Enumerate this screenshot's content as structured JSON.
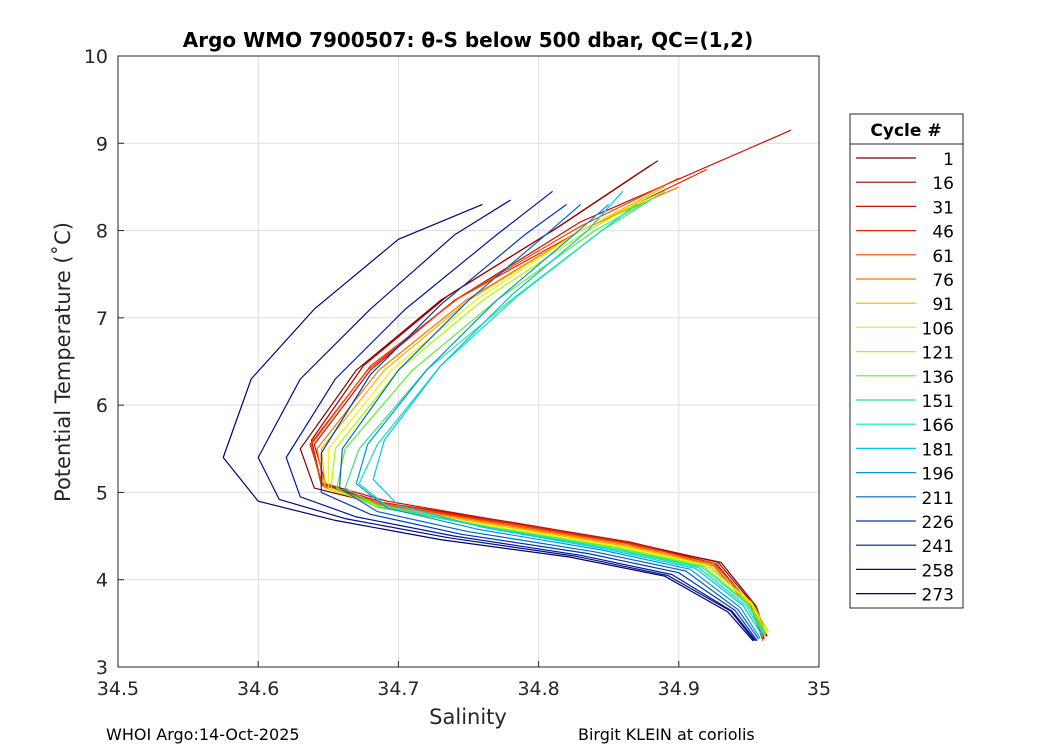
{
  "chart_data": {
    "type": "line",
    "title": "Argo WMO 7900507: θ-S below 500 dbar,  QC=(1,2)",
    "xlabel": "Salinity",
    "ylabel": "Potential Temperature (˚C)",
    "xlim": [
      34.5,
      35
    ],
    "ylim": [
      3,
      10
    ],
    "xticks": [
      34.5,
      34.6,
      34.7,
      34.8,
      34.9,
      35
    ],
    "xtick_labels": [
      "34.5",
      "34.6",
      "34.7",
      "34.8",
      "34.9",
      "35"
    ],
    "yticks": [
      3,
      4,
      5,
      6,
      7,
      8,
      9,
      10
    ],
    "ytick_labels": [
      "3",
      "4",
      "5",
      "6",
      "7",
      "8",
      "9",
      "10"
    ],
    "grid": true,
    "legend": {
      "title": "Cycle #",
      "position": "right-outside",
      "entries": [
        {
          "label": "1",
          "color": "#800000"
        },
        {
          "label": "16",
          "color": "#a00000"
        },
        {
          "label": "31",
          "color": "#c81000"
        },
        {
          "label": "46",
          "color": "#e02800"
        },
        {
          "label": "61",
          "color": "#f04800"
        },
        {
          "label": "76",
          "color": "#f87800"
        },
        {
          "label": "91",
          "color": "#f8b000"
        },
        {
          "label": "106",
          "color": "#f8f000"
        },
        {
          "label": "121",
          "color": "#b0f800"
        },
        {
          "label": "136",
          "color": "#60f030"
        },
        {
          "label": "151",
          "color": "#30e880"
        },
        {
          "label": "166",
          "color": "#10e0c0"
        },
        {
          "label": "181",
          "color": "#00c8f0"
        },
        {
          "label": "196",
          "color": "#0098d8"
        },
        {
          "label": "211",
          "color": "#0068c8"
        },
        {
          "label": "226",
          "color": "#0038b0"
        },
        {
          "label": "241",
          "color": "#001898"
        },
        {
          "label": "258",
          "color": "#000c80"
        },
        {
          "label": "273",
          "color": "#000070"
        }
      ]
    },
    "series": [
      {
        "name": "1",
        "color": "#800000",
        "salinity": [
          34.963,
          34.955,
          34.93,
          34.87,
          34.78,
          34.69,
          34.64,
          34.63,
          34.67,
          34.73,
          34.81,
          34.88
        ],
        "theta": [
          3.35,
          3.7,
          4.2,
          4.4,
          4.65,
          4.85,
          5.05,
          5.5,
          6.4,
          7.2,
          8.0,
          8.75
        ]
      },
      {
        "name": "16",
        "color": "#a00000",
        "salinity": [
          34.962,
          34.954,
          34.928,
          34.868,
          34.78,
          34.69,
          34.645,
          34.638,
          34.675,
          34.735,
          34.815,
          34.885
        ],
        "theta": [
          3.35,
          3.7,
          4.2,
          4.42,
          4.66,
          4.88,
          5.1,
          5.6,
          6.45,
          7.25,
          8.05,
          8.8
        ]
      },
      {
        "name": "31",
        "color": "#c81000",
        "salinity": [
          34.961,
          34.953,
          34.927,
          34.866,
          34.779,
          34.692,
          34.648,
          34.64,
          34.68,
          34.74,
          34.83,
          34.98
        ],
        "theta": [
          3.32,
          3.68,
          4.18,
          4.43,
          4.66,
          4.9,
          5.1,
          5.55,
          6.4,
          7.2,
          8.1,
          9.15
        ]
      },
      {
        "name": "46",
        "color": "#e02800",
        "salinity": [
          34.96,
          34.952,
          34.926,
          34.865,
          34.778,
          34.69,
          34.646,
          34.637,
          34.678,
          34.74,
          34.83,
          34.92
        ],
        "theta": [
          3.32,
          3.68,
          4.18,
          4.42,
          4.65,
          4.88,
          5.08,
          5.55,
          6.4,
          7.2,
          8.0,
          8.7
        ]
      },
      {
        "name": "61",
        "color": "#f04800",
        "salinity": [
          34.96,
          34.952,
          34.925,
          34.864,
          34.776,
          34.688,
          34.645,
          34.638,
          34.68,
          34.745,
          34.83,
          34.9
        ],
        "theta": [
          3.3,
          3.66,
          4.16,
          4.41,
          4.64,
          4.87,
          5.08,
          5.55,
          6.45,
          7.25,
          8.05,
          8.6
        ]
      },
      {
        "name": "76",
        "color": "#f87800",
        "salinity": [
          34.962,
          34.953,
          34.925,
          34.862,
          34.774,
          34.688,
          34.647,
          34.642,
          34.686,
          34.748,
          34.83,
          34.9
        ],
        "theta": [
          3.35,
          3.7,
          4.18,
          4.4,
          4.63,
          4.86,
          5.06,
          5.5,
          6.4,
          7.2,
          8.0,
          8.5
        ]
      },
      {
        "name": "91",
        "color": "#f8b000",
        "salinity": [
          34.962,
          34.952,
          34.922,
          34.86,
          34.772,
          34.687,
          34.648,
          34.645,
          34.69,
          34.75,
          34.83,
          34.89
        ],
        "theta": [
          3.35,
          3.7,
          4.17,
          4.39,
          4.62,
          4.85,
          5.05,
          5.5,
          6.4,
          7.2,
          8.0,
          8.5
        ]
      },
      {
        "name": "106",
        "color": "#f8f000",
        "salinity": [
          34.963,
          34.952,
          34.92,
          34.858,
          34.77,
          34.686,
          34.65,
          34.65,
          34.695,
          34.755,
          34.83,
          34.88
        ],
        "theta": [
          3.38,
          3.72,
          4.17,
          4.38,
          4.61,
          4.84,
          5.05,
          5.5,
          6.4,
          7.2,
          8.0,
          8.4
        ]
      },
      {
        "name": "121",
        "color": "#b0f800",
        "salinity": [
          34.964,
          34.952,
          34.92,
          34.856,
          34.768,
          34.684,
          34.652,
          34.655,
          34.7,
          34.76,
          34.835,
          34.88
        ],
        "theta": [
          3.4,
          3.74,
          4.16,
          4.37,
          4.6,
          4.84,
          5.05,
          5.5,
          6.4,
          7.2,
          8.0,
          8.4
        ]
      },
      {
        "name": "136",
        "color": "#60f030",
        "salinity": [
          34.962,
          34.95,
          34.918,
          34.854,
          34.766,
          34.685,
          34.656,
          34.662,
          34.71,
          34.77,
          34.84,
          34.89
        ],
        "theta": [
          3.38,
          3.72,
          4.15,
          4.37,
          4.6,
          4.83,
          5.05,
          5.5,
          6.4,
          7.2,
          8.0,
          8.45
        ]
      },
      {
        "name": "151",
        "color": "#30e880",
        "salinity": [
          34.961,
          34.949,
          34.916,
          34.852,
          34.764,
          34.688,
          34.662,
          34.672,
          34.72,
          34.78,
          34.845,
          34.88
        ],
        "theta": [
          3.38,
          3.72,
          4.15,
          4.36,
          4.6,
          4.83,
          5.05,
          5.5,
          6.4,
          7.2,
          8.0,
          8.35
        ]
      },
      {
        "name": "166",
        "color": "#10e0c0",
        "salinity": [
          34.961,
          34.948,
          34.914,
          34.85,
          34.762,
          34.692,
          34.672,
          34.685,
          34.73,
          34.785,
          34.845,
          34.87
        ],
        "theta": [
          3.36,
          3.7,
          4.14,
          4.36,
          4.6,
          4.84,
          5.1,
          5.55,
          6.45,
          7.25,
          8.0,
          8.3
        ]
      },
      {
        "name": "181",
        "color": "#00c8f0",
        "salinity": [
          34.96,
          34.946,
          34.912,
          34.848,
          34.76,
          34.7,
          34.682,
          34.69,
          34.73,
          34.78,
          34.835,
          34.86
        ],
        "theta": [
          3.35,
          3.7,
          4.13,
          4.35,
          4.6,
          4.85,
          5.15,
          5.6,
          6.45,
          7.25,
          8.0,
          8.45
        ]
      },
      {
        "name": "196",
        "color": "#0098d8",
        "salinity": [
          34.958,
          34.944,
          34.908,
          34.845,
          34.756,
          34.692,
          34.67,
          34.678,
          34.72,
          34.77,
          34.825,
          34.85
        ],
        "theta": [
          3.33,
          3.68,
          4.12,
          4.34,
          4.58,
          4.82,
          5.1,
          5.55,
          6.4,
          7.2,
          7.95,
          8.3
        ]
      },
      {
        "name": "211",
        "color": "#0068c8",
        "salinity": [
          34.957,
          34.942,
          34.905,
          34.84,
          34.75,
          34.685,
          34.658,
          34.66,
          34.7,
          34.75,
          34.805,
          34.83
        ],
        "theta": [
          3.32,
          3.66,
          4.1,
          4.32,
          4.55,
          4.78,
          5.05,
          5.5,
          6.4,
          7.2,
          7.95,
          8.3
        ]
      },
      {
        "name": "226",
        "color": "#0038b0",
        "salinity": [
          34.956,
          34.94,
          34.9,
          34.835,
          34.745,
          34.68,
          34.645,
          34.645,
          34.68,
          34.73,
          34.79,
          34.82
        ],
        "theta": [
          3.3,
          3.65,
          4.08,
          4.3,
          4.52,
          4.75,
          5.0,
          5.45,
          6.35,
          7.15,
          7.95,
          8.3
        ]
      },
      {
        "name": "241",
        "color": "#001898",
        "salinity": [
          34.955,
          34.938,
          34.895,
          34.83,
          34.74,
          34.67,
          34.63,
          34.62,
          34.655,
          34.705,
          34.77,
          34.81
        ],
        "theta": [
          3.3,
          3.64,
          4.06,
          4.28,
          4.5,
          4.72,
          4.95,
          5.4,
          6.3,
          7.1,
          7.95,
          8.45
        ]
      },
      {
        "name": "258",
        "color": "#000c80",
        "salinity": [
          34.954,
          34.937,
          34.892,
          34.826,
          34.736,
          34.662,
          34.615,
          34.6,
          34.63,
          34.68,
          34.74,
          34.78
        ],
        "theta": [
          3.3,
          3.64,
          4.05,
          4.27,
          4.48,
          4.7,
          4.92,
          5.4,
          6.3,
          7.1,
          7.95,
          8.35
        ]
      },
      {
        "name": "273",
        "color": "#000070",
        "salinity": [
          34.953,
          34.935,
          34.89,
          34.822,
          34.73,
          34.655,
          34.6,
          34.575,
          34.595,
          34.64,
          34.7,
          34.76
        ],
        "theta": [
          3.3,
          3.63,
          4.04,
          4.26,
          4.46,
          4.68,
          4.9,
          5.4,
          6.3,
          7.1,
          7.9,
          8.3
        ]
      }
    ]
  },
  "footer": {
    "left": "WHOI Argo:14-Oct-2025",
    "right": "Birgit KLEIN at coriolis"
  }
}
